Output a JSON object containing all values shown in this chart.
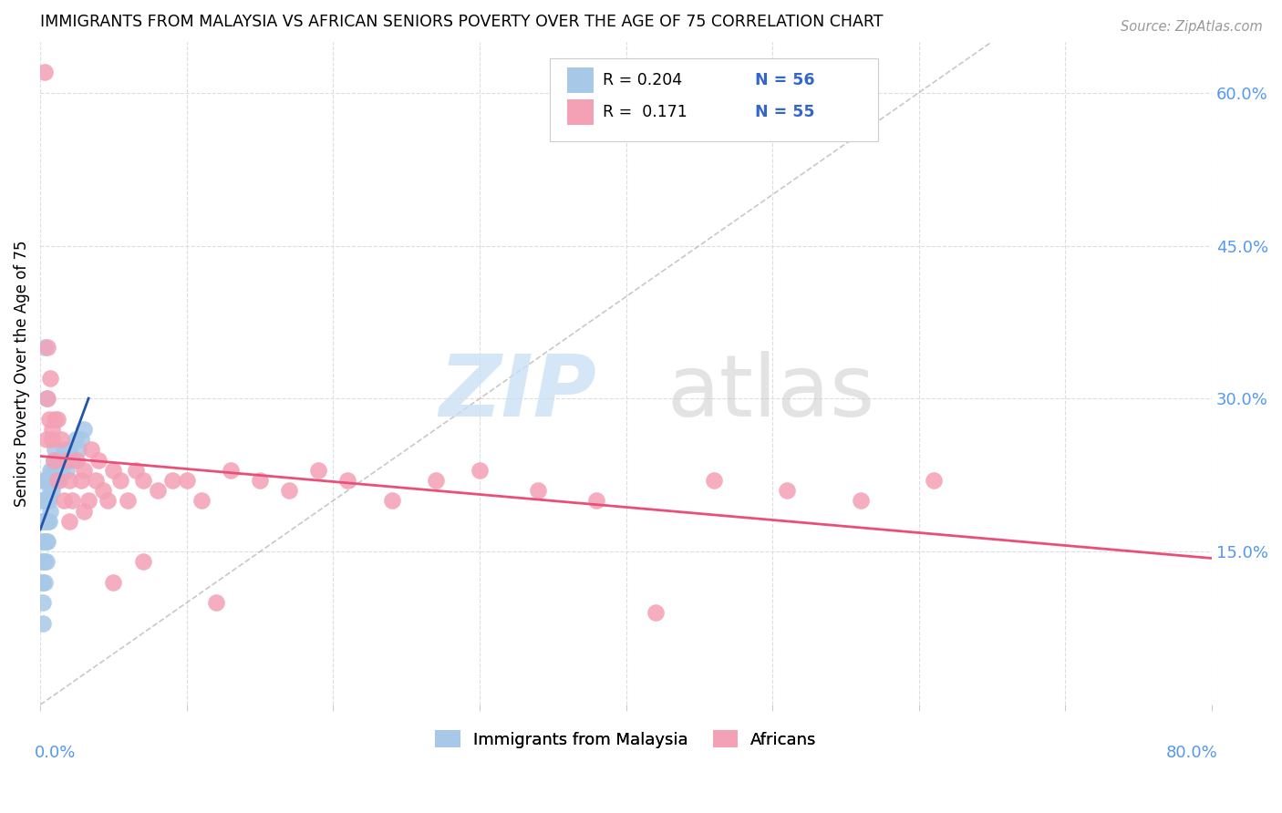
{
  "title": "IMMIGRANTS FROM MALAYSIA VS AFRICAN SENIORS POVERTY OVER THE AGE OF 75 CORRELATION CHART",
  "source": "Source: ZipAtlas.com",
  "ylabel": "Seniors Poverty Over the Age of 75",
  "xlim": [
    0.0,
    0.8
  ],
  "ylim": [
    0.0,
    0.65
  ],
  "yticks": [
    0.15,
    0.3,
    0.45,
    0.6
  ],
  "ytick_labels": [
    "15.0%",
    "30.0%",
    "45.0%",
    "60.0%"
  ],
  "xticks": [
    0.0,
    0.1,
    0.2,
    0.3,
    0.4,
    0.5,
    0.6,
    0.7,
    0.8
  ],
  "color_blue": "#a8c8e8",
  "color_pink": "#f4a0b5",
  "trendline_blue_color": "#2255aa",
  "trendline_pink_color": "#e8507a",
  "dashed_line_color": "#bbbbbb",
  "malaysia_x": [
    0.001,
    0.001,
    0.001,
    0.001,
    0.001,
    0.002,
    0.002,
    0.002,
    0.002,
    0.002,
    0.002,
    0.002,
    0.002,
    0.003,
    0.003,
    0.003,
    0.003,
    0.003,
    0.003,
    0.004,
    0.004,
    0.004,
    0.004,
    0.004,
    0.005,
    0.005,
    0.005,
    0.005,
    0.006,
    0.006,
    0.006,
    0.007,
    0.007,
    0.007,
    0.008,
    0.008,
    0.009,
    0.009,
    0.01,
    0.01,
    0.011,
    0.012,
    0.013,
    0.014,
    0.015,
    0.016,
    0.017,
    0.018,
    0.02,
    0.022,
    0.024,
    0.026,
    0.028,
    0.03,
    0.003,
    0.004
  ],
  "malaysia_y": [
    0.2,
    0.18,
    0.16,
    0.14,
    0.12,
    0.22,
    0.2,
    0.18,
    0.16,
    0.14,
    0.12,
    0.1,
    0.08,
    0.22,
    0.2,
    0.18,
    0.16,
    0.14,
    0.12,
    0.22,
    0.2,
    0.18,
    0.16,
    0.14,
    0.22,
    0.2,
    0.18,
    0.16,
    0.22,
    0.2,
    0.18,
    0.23,
    0.21,
    0.19,
    0.23,
    0.21,
    0.24,
    0.22,
    0.25,
    0.23,
    0.24,
    0.23,
    0.22,
    0.24,
    0.23,
    0.25,
    0.24,
    0.23,
    0.25,
    0.24,
    0.26,
    0.25,
    0.26,
    0.27,
    0.35,
    0.3
  ],
  "africans_x": [
    0.003,
    0.004,
    0.005,
    0.006,
    0.007,
    0.008,
    0.009,
    0.01,
    0.012,
    0.014,
    0.016,
    0.018,
    0.02,
    0.022,
    0.025,
    0.028,
    0.03,
    0.033,
    0.035,
    0.038,
    0.04,
    0.043,
    0.046,
    0.05,
    0.055,
    0.06,
    0.065,
    0.07,
    0.08,
    0.09,
    0.1,
    0.11,
    0.12,
    0.13,
    0.15,
    0.17,
    0.19,
    0.21,
    0.24,
    0.27,
    0.3,
    0.34,
    0.38,
    0.42,
    0.46,
    0.51,
    0.56,
    0.61,
    0.005,
    0.008,
    0.012,
    0.02,
    0.03,
    0.05,
    0.07
  ],
  "africans_y": [
    0.62,
    0.26,
    0.3,
    0.28,
    0.32,
    0.26,
    0.24,
    0.28,
    0.22,
    0.26,
    0.2,
    0.24,
    0.22,
    0.2,
    0.24,
    0.22,
    0.23,
    0.2,
    0.25,
    0.22,
    0.24,
    0.21,
    0.2,
    0.23,
    0.22,
    0.2,
    0.23,
    0.22,
    0.21,
    0.22,
    0.22,
    0.2,
    0.1,
    0.23,
    0.22,
    0.21,
    0.23,
    0.22,
    0.2,
    0.22,
    0.23,
    0.21,
    0.2,
    0.09,
    0.22,
    0.21,
    0.2,
    0.22,
    0.35,
    0.27,
    0.28,
    0.18,
    0.19,
    0.12,
    0.14
  ]
}
